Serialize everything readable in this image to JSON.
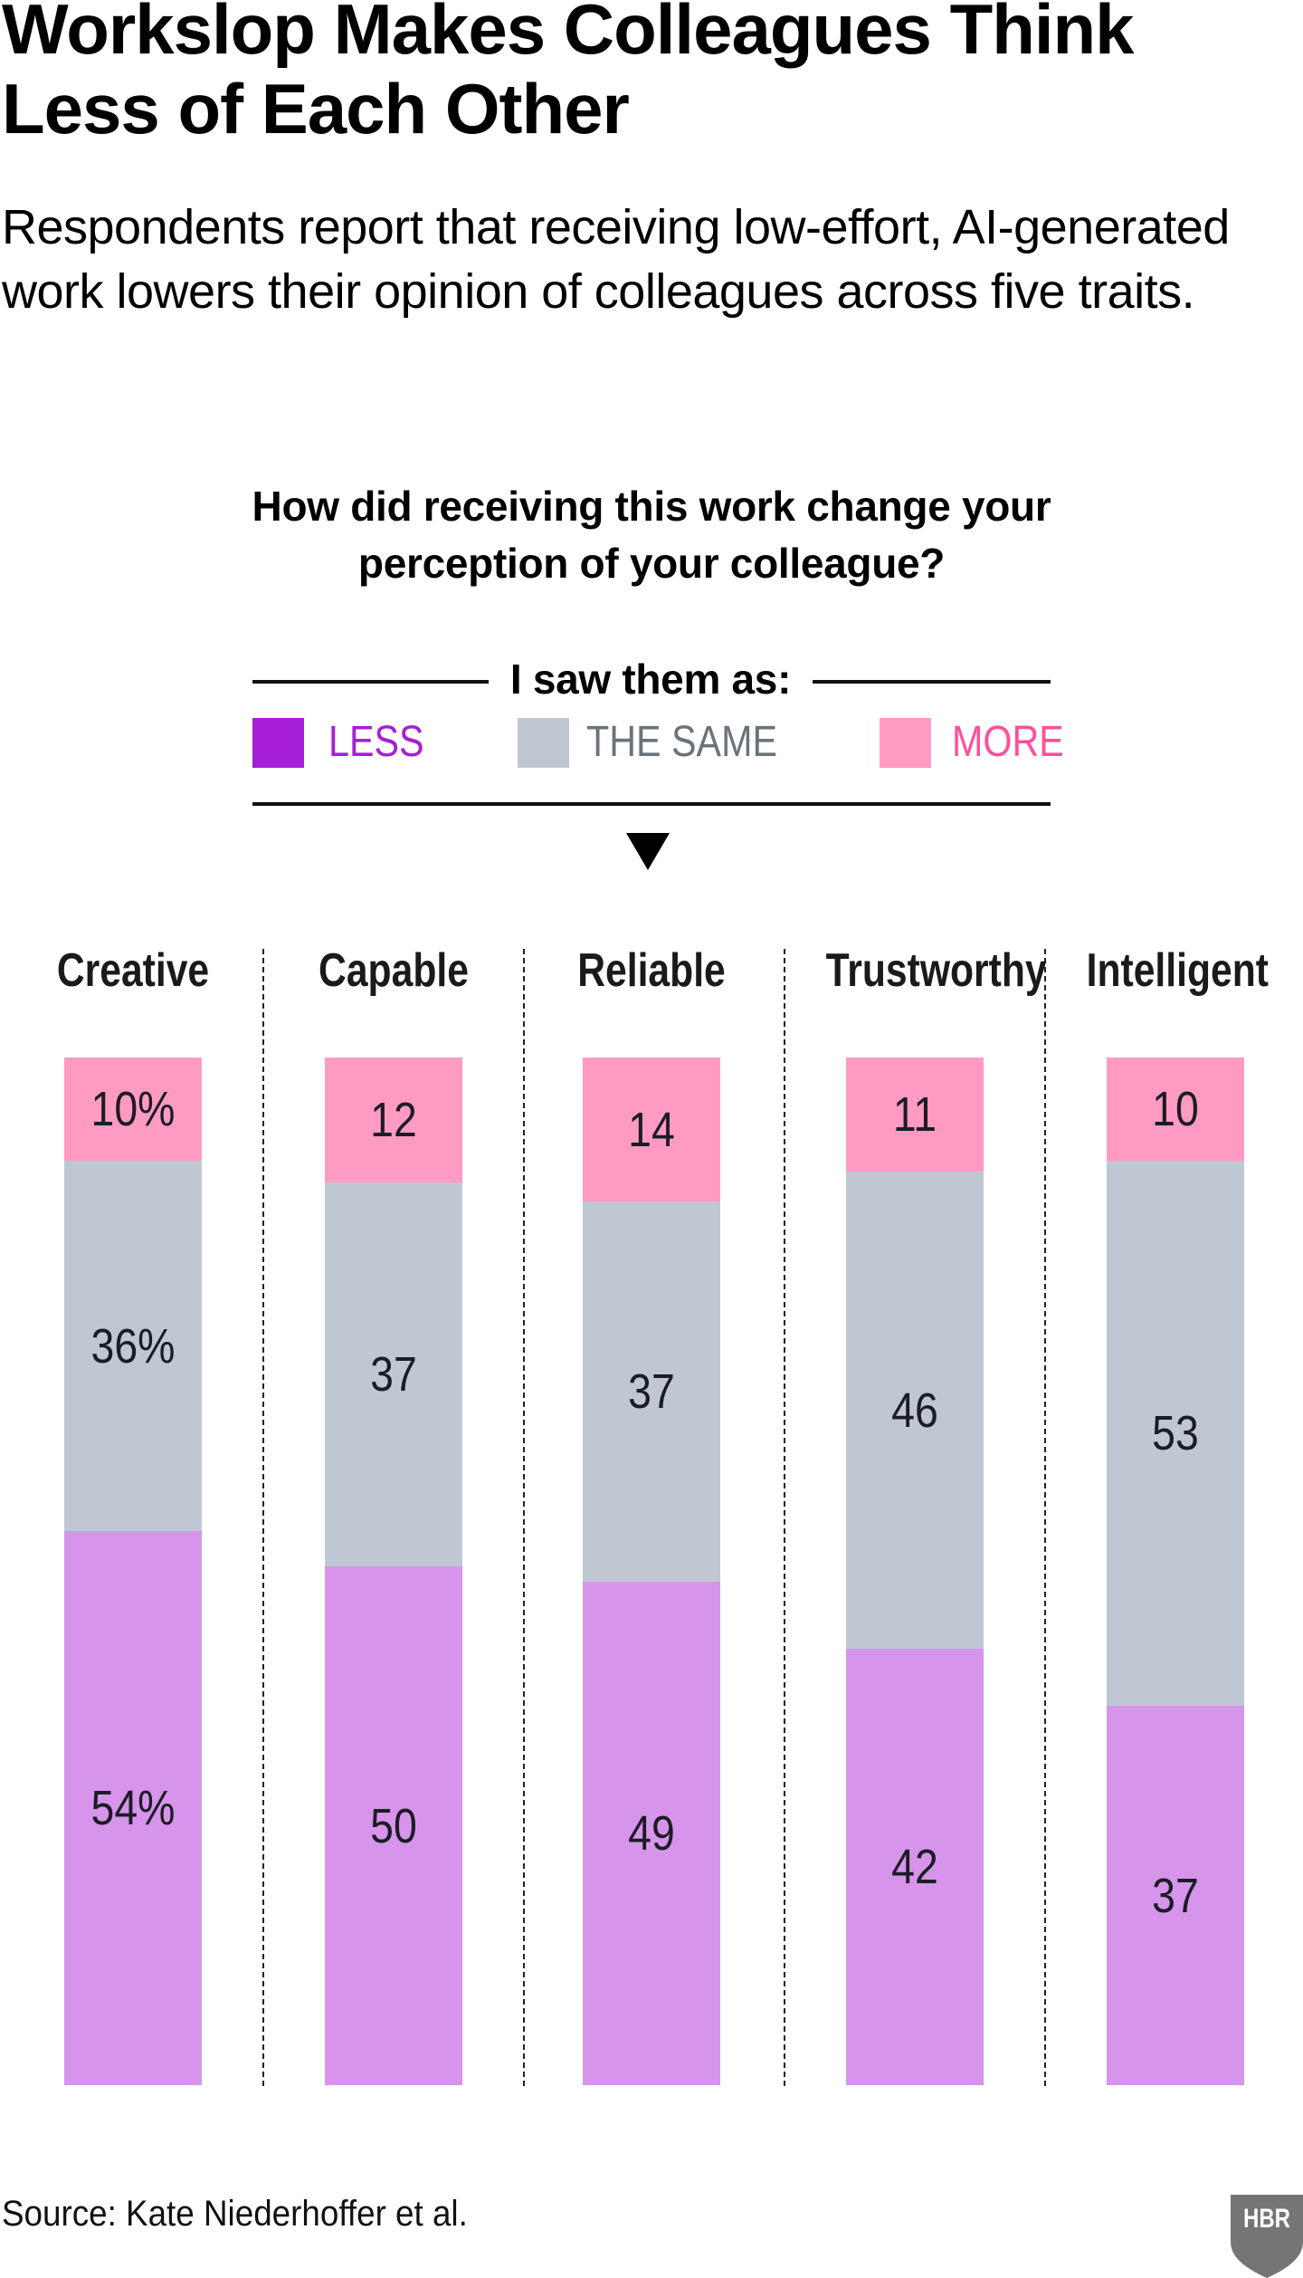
{
  "header": {
    "title": "Workslop Makes Colleagues Think Less of Each Other",
    "subtitle": "Respondents report that receiving low-effort, AI-generated work lowers their opinion of colleagues across five traits."
  },
  "question": "How did receiving this work change your perception of your colleague?",
  "legend": {
    "heading": "I saw them as:",
    "items": [
      {
        "key": "less",
        "label": "LESS",
        "swatch_color": "#A61ED8",
        "text_color": "#A61ED8"
      },
      {
        "key": "same",
        "label": "THE SAME",
        "swatch_color": "#BFC8D2",
        "text_color": "#6B737A"
      },
      {
        "key": "more",
        "label": "MORE",
        "swatch_color": "#FF9BC3",
        "text_color": "#FF4F9A"
      }
    ]
  },
  "chart_data": {
    "type": "bar",
    "stacked": true,
    "orientation": "vertical",
    "title": "How did receiving this work change your perception of your colleague?",
    "legend_title": "I saw them as:",
    "legend_position": "top",
    "categories": [
      "Creative",
      "Capable",
      "Reliable",
      "Trustworthy",
      "Intelligent"
    ],
    "stack_order_top_to_bottom": [
      "more",
      "same",
      "less"
    ],
    "series": [
      {
        "key": "more",
        "name": "MORE",
        "color": "#FF9BC3",
        "values": [
          10,
          12,
          14,
          11,
          10
        ],
        "labels": [
          "10%",
          "12",
          "14",
          "11",
          "10"
        ]
      },
      {
        "key": "same",
        "name": "THE SAME",
        "color": "#BFC8D2",
        "values": [
          36,
          37,
          37,
          46,
          53
        ],
        "labels": [
          "36%",
          "37",
          "37",
          "46",
          "53"
        ]
      },
      {
        "key": "less",
        "name": "LESS",
        "color": "#D694EB",
        "values": [
          54,
          50,
          49,
          42,
          37
        ],
        "labels": [
          "54%",
          "50",
          "49",
          "42",
          "37"
        ]
      }
    ],
    "unit": "%",
    "grid": false,
    "category_dividers": "dashed"
  },
  "footer": {
    "source": "Source: Kate Niederhoffer et al.",
    "logo_text": "HBR",
    "logo_color": "#757575"
  }
}
